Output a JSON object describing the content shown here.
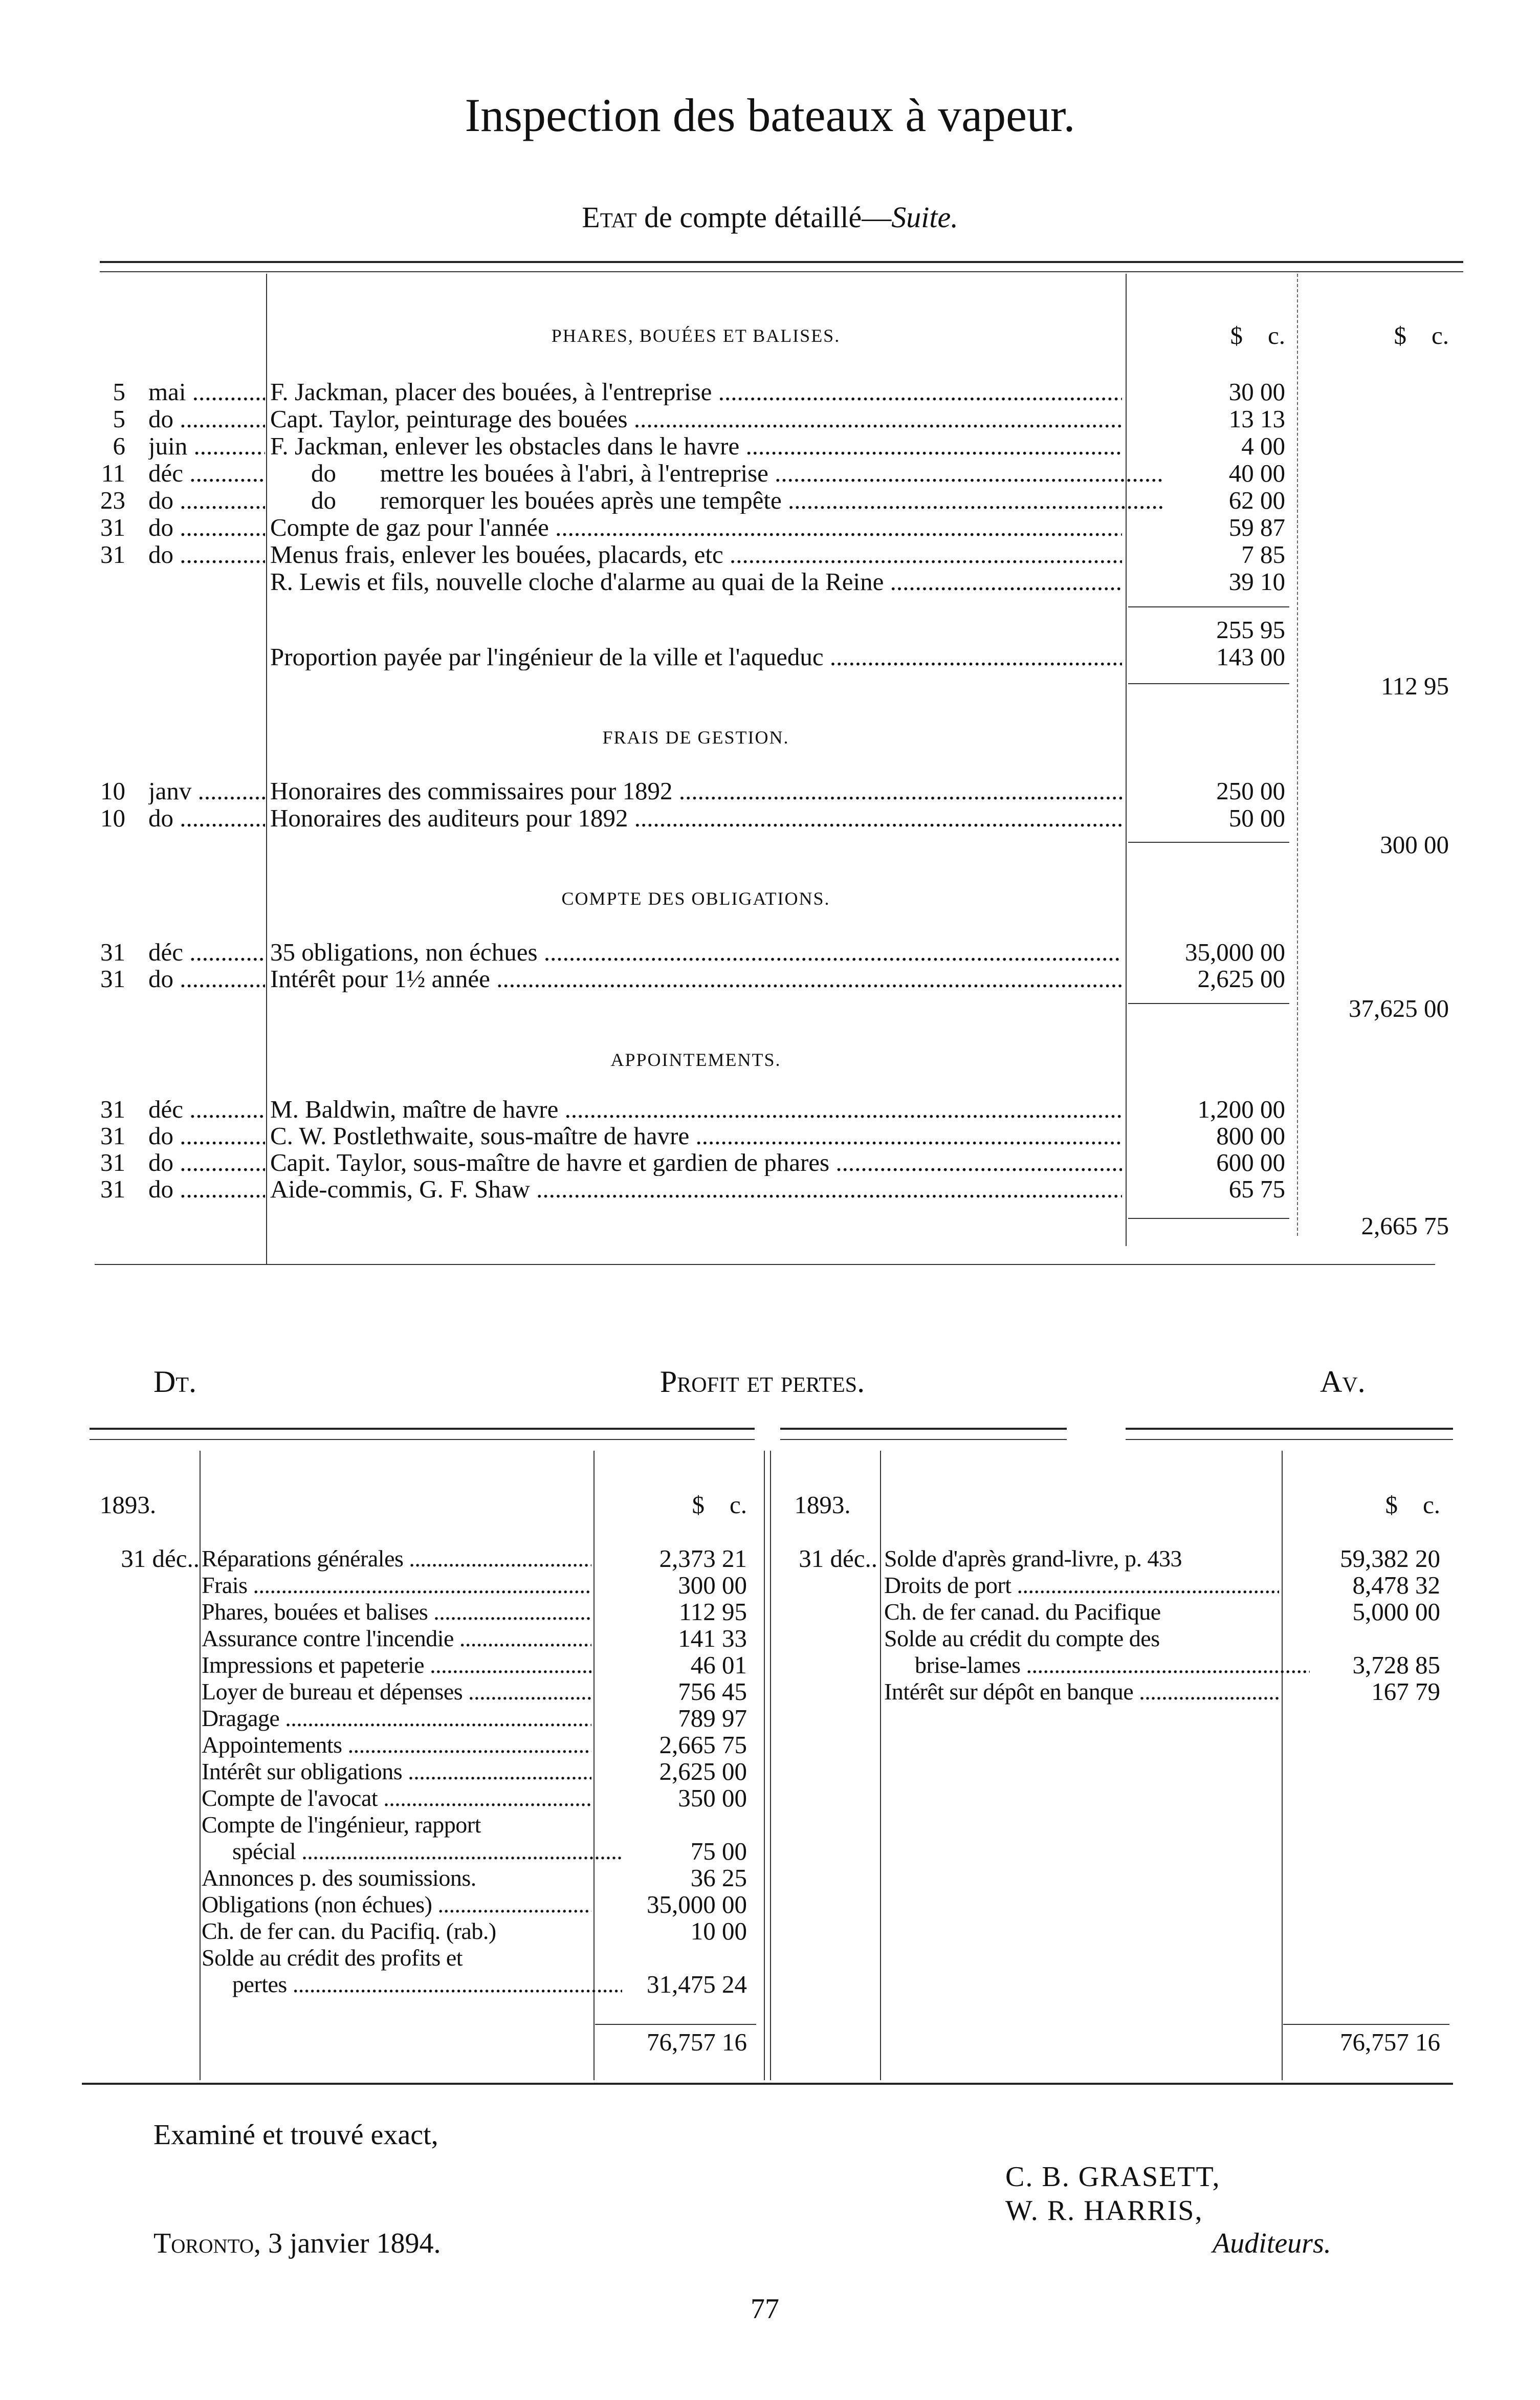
{
  "page": {
    "title": "Inspection des bateaux à vapeur.",
    "subtitle_lead": "Etat",
    "subtitle_rest": " de compte détaillé—",
    "subtitle_italic": "Suite.",
    "page_number": "77"
  },
  "statement": {
    "currency_header": {
      "dollars": "$",
      "cents": "c."
    },
    "sections": [
      {
        "heading": "Phares, bouées et balises.",
        "rows": [
          {
            "day": "5",
            "month": "mai",
            "desc": "F. Jackman, placer des bouées, à l'entreprise",
            "amount": "30 00"
          },
          {
            "day": "5",
            "month": "do",
            "desc": "Capt. Taylor, peinturage des bouées",
            "amount": "13 13"
          },
          {
            "day": "6",
            "month": "juin",
            "desc": "F. Jackman, enlever les obstacles dans le havre",
            "amount": "4 00"
          },
          {
            "day": "11",
            "month": "déc",
            "desc": "do       mettre les bouées à l'abri, à l'entreprise",
            "amount": "40 00"
          },
          {
            "day": "23",
            "month": "do",
            "desc": "do       remorquer les bouées après une tempête",
            "amount": "62 00"
          },
          {
            "day": "31",
            "month": "do",
            "desc": "Compte de gaz pour l'année",
            "amount": "59 87"
          },
          {
            "day": "31",
            "month": "do",
            "desc": "Menus frais, enlever les bouées, placards, etc",
            "amount": "7 85"
          },
          {
            "day": "",
            "month": "",
            "desc": "R. Lewis et fils, nouvelle cloche d'alarme au quai de la Reine",
            "amount": "39 10"
          }
        ],
        "subtotal": "255 95",
        "deduction_desc": "Proportion payée par l'ingénieur de la ville et l'aqueduc",
        "deduction_amount": "143 00",
        "total": "112 95"
      },
      {
        "heading": "Frais de gestion.",
        "rows": [
          {
            "day": "10",
            "month": "janv",
            "desc": "Honoraires des commissaires pour 1892",
            "amount": "250 00"
          },
          {
            "day": "10",
            "month": "do",
            "desc": "Honoraires des auditeurs pour 1892",
            "amount": "50 00"
          }
        ],
        "total": "300 00"
      },
      {
        "heading": "Compte des obligations.",
        "rows": [
          {
            "day": "31",
            "month": "déc",
            "desc": "35 obligations, non échues",
            "amount": "35,000 00"
          },
          {
            "day": "31",
            "month": "do",
            "desc": "Intérêt pour 1½ année",
            "amount": "2,625 00"
          }
        ],
        "total": "37,625 00"
      },
      {
        "heading": "Appointements.",
        "rows": [
          {
            "day": "31",
            "month": "déc",
            "desc": "M. Baldwin, maître de havre",
            "amount": "1,200 00"
          },
          {
            "day": "31",
            "month": "do",
            "desc": "C. W. Postlethwaite, sous-maître de havre",
            "amount": "800 00"
          },
          {
            "day": "31",
            "month": "do",
            "desc": "Capit. Taylor, sous-maître de havre et gardien de phares",
            "amount": "600 00"
          },
          {
            "day": "31",
            "month": "do",
            "desc": "Aide-commis, G. F. Shaw",
            "amount": "65 75"
          }
        ],
        "total": "2,665 75"
      }
    ]
  },
  "ledger": {
    "debit_label": "Dt.",
    "title": "Profit et pertes.",
    "credit_label": "Av.",
    "year": "1893.",
    "currency_header": {
      "dollars": "$",
      "cents": "c."
    },
    "debit": {
      "date": "31 déc..",
      "rows": [
        {
          "desc": "Réparations générales",
          "amount": "2,373 21"
        },
        {
          "desc": "Frais",
          "amount": "300 00"
        },
        {
          "desc": "Phares, bouées et balises",
          "amount": "112 95"
        },
        {
          "desc": "Assurance contre l'incendie",
          "amount": "141 33"
        },
        {
          "desc": "Impressions et papeterie",
          "amount": "46 01"
        },
        {
          "desc": "Loyer de bureau et dépenses",
          "amount": "756 45"
        },
        {
          "desc": "Dragage",
          "amount": "789 97"
        },
        {
          "desc": "Appointements",
          "amount": "2,665 75"
        },
        {
          "desc": "Intérêt sur obligations",
          "amount": "2,625 00"
        },
        {
          "desc": "Compte de l'avocat",
          "amount": "350 00"
        },
        {
          "desc": "Compte de l'ingénieur, rapport",
          "desc_cont": "spécial",
          "amount": "75 00"
        },
        {
          "desc": "Annonces p. des soumissions.",
          "amount": "36 25"
        },
        {
          "desc": "Obligations (non échues)",
          "amount": "35,000 00"
        },
        {
          "desc": "Ch. de fer can. du Pacifiq. (rab.)",
          "amount": "10 00"
        },
        {
          "desc": "Solde au crédit des profits et",
          "desc_cont": "pertes",
          "amount": "31,475 24"
        }
      ],
      "total": "76,757 16"
    },
    "credit": {
      "date": "31 déc..",
      "rows": [
        {
          "desc": "Solde d'après grand-livre, p. 433",
          "amount": "59,382 20"
        },
        {
          "desc": "Droits de port",
          "amount": "8,478 32"
        },
        {
          "desc": "Ch. de fer canad. du Pacifique",
          "amount": "5,000 00"
        },
        {
          "desc": "Solde au crédit du compte des",
          "desc_cont": "brise-lames",
          "amount": "3,728 85"
        },
        {
          "desc": "Intérêt sur dépôt en banque",
          "amount": "167 79"
        }
      ],
      "total": "76,757 16"
    }
  },
  "footer": {
    "attestation": "Examiné et trouvé exact,",
    "place": "Toronto",
    "date": ", 3 janvier 1894.",
    "signatories": [
      "C. B. GRASETT,",
      "W. R. HARRIS,"
    ],
    "role": "Auditeurs."
  }
}
